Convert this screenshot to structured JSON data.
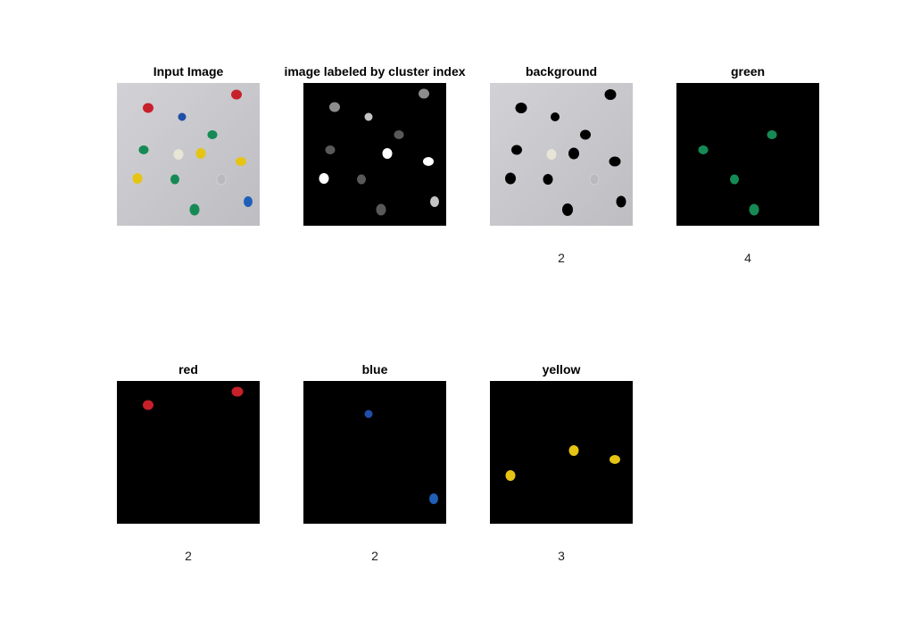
{
  "figure": {
    "panels": [
      {
        "id": "input",
        "title": "Input Image",
        "count": null
      },
      {
        "id": "labeled",
        "title": "image labeled by cluster index",
        "count": null
      },
      {
        "id": "background",
        "title": "background",
        "count": "2"
      },
      {
        "id": "green",
        "title": "green",
        "count": "4"
      },
      {
        "id": "red",
        "title": "red",
        "count": "2"
      },
      {
        "id": "blue",
        "title": "blue",
        "count": "2"
      },
      {
        "id": "yellow",
        "title": "yellow",
        "count": "3"
      }
    ]
  },
  "colors": {
    "red": "#c8202a",
    "blue": "#1f4fa8",
    "green": "#168a55",
    "yellow": "#e6c414",
    "white_pin": "#e8e4d6",
    "paper": "#c9c9cd",
    "black": "#000000"
  }
}
